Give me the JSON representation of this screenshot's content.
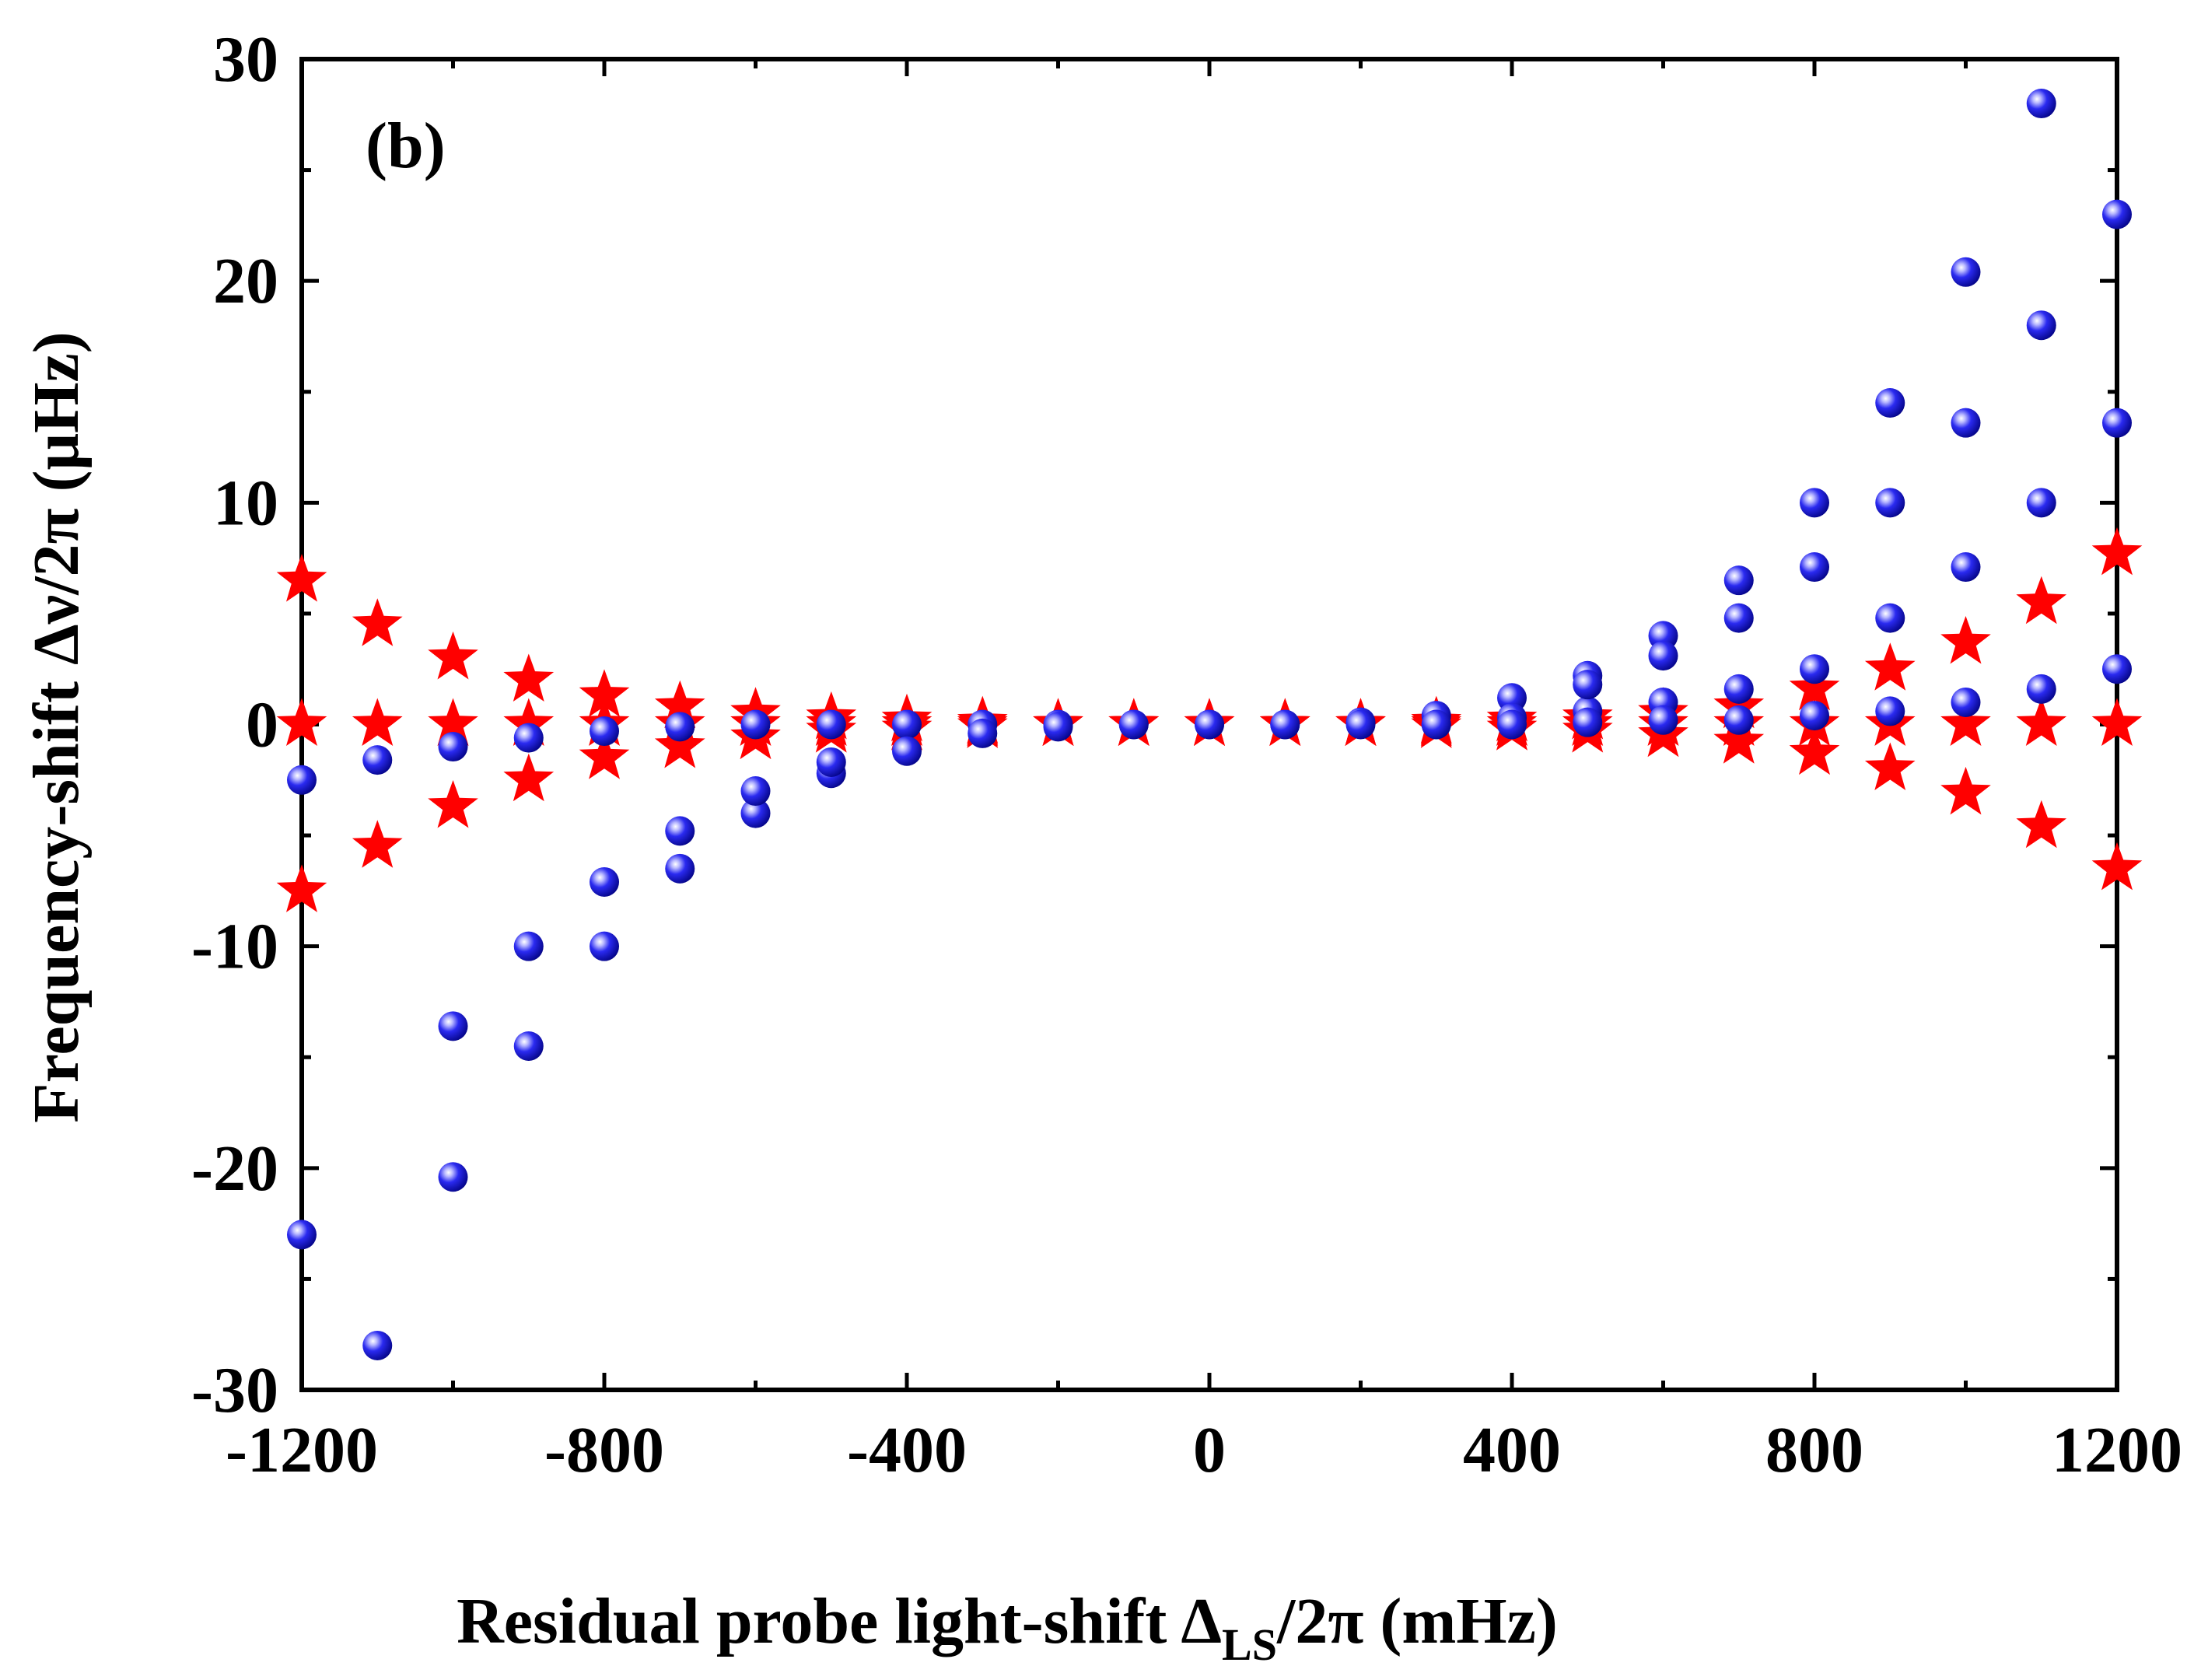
{
  "chart_data": {
    "type": "scatter",
    "panel_label": "(b)",
    "xlabel": "Residual probe light-shift",
    "xlabel_symbol": "Δ",
    "xlabel_subscript": "LS",
    "xlabel_tail": "/2π (mHz)",
    "ylabel": "Frequency-shift Δν/2π (μHz)",
    "xlim": [
      -1200,
      1200
    ],
    "ylim": [
      -30,
      30
    ],
    "x_ticks": [
      "-1200",
      "-800",
      "-400",
      "0",
      "400",
      "800",
      "1200"
    ],
    "y_ticks": [
      "-30",
      "-20",
      "-10",
      "0",
      "10",
      "20",
      "30"
    ],
    "grid": false,
    "colors": {
      "circles": "#1010e0",
      "stars": "#ff0000",
      "axes": "#000000"
    },
    "series": [
      {
        "name": "circles upper",
        "marker": "circle",
        "x": [
          -1200,
          -1100,
          -1000,
          -900,
          -800,
          -700,
          -600,
          -500,
          -400,
          -300,
          -200,
          -100,
          0,
          100,
          200,
          300,
          400,
          500,
          600,
          700,
          800,
          900,
          1000,
          1100,
          1200
        ],
        "y": [
          -2.5,
          -1.6,
          -1.0,
          -0.6,
          -0.3,
          -0.1,
          0.0,
          0.0,
          0.0,
          0.0,
          0.0,
          0.0,
          0.0,
          0.0,
          0.1,
          0.4,
          1.2,
          2.2,
          4.0,
          6.5,
          10.0,
          14.5,
          20.4,
          28.0,
          23.0
        ]
      },
      {
        "name": "circles lower",
        "marker": "circle",
        "x": [
          -1200,
          -1100,
          -1000,
          -900,
          -800,
          -700,
          -600,
          -500,
          -400,
          -300,
          -200,
          -100,
          0,
          100,
          200,
          300,
          400,
          500,
          600,
          700,
          800,
          900,
          1000,
          1100,
          1200
        ],
        "y": [
          -23.0,
          -28.0,
          -20.4,
          -14.5,
          -10.0,
          -6.5,
          -4.0,
          -2.2,
          -1.2,
          -0.4,
          -0.1,
          0.0,
          0.0,
          0.0,
          0.0,
          0.0,
          0.3,
          0.6,
          1.0,
          1.6,
          2.5,
          4.8,
          7.1,
          10.0,
          13.6
        ]
      },
      {
        "name": "circles lower-left inner",
        "marker": "circle",
        "x": [
          -1000,
          -900,
          -800,
          -700,
          -600,
          -500
        ],
        "y": [
          -13.6,
          -10.0,
          -7.1,
          -4.8,
          -3.0,
          -1.7
        ]
      },
      {
        "name": "circles near zero",
        "marker": "circle",
        "x": [
          300,
          400,
          500,
          600,
          700,
          800,
          900,
          1000,
          1100,
          1200
        ],
        "y": [
          0.0,
          0.0,
          0.1,
          0.2,
          0.2,
          0.4,
          0.6,
          1.0,
          1.6,
          2.5
        ]
      },
      {
        "name": "circles right mid",
        "marker": "circle",
        "x": [
          500,
          600,
          700,
          800,
          900,
          1000,
          1100
        ],
        "y": [
          1.8,
          3.1,
          4.8,
          7.1,
          10.0,
          13.6,
          18.0
        ]
      },
      {
        "name": "stars upper",
        "marker": "star",
        "x": [
          -1200,
          -1100,
          -1000,
          -900,
          -800,
          -700,
          -600,
          -500,
          -400,
          -300,
          -200,
          -100,
          0,
          100,
          200,
          300,
          400,
          500,
          600,
          700,
          800,
          900,
          1000,
          1100,
          1200
        ],
        "y": [
          6.5,
          4.5,
          3.0,
          2.0,
          1.3,
          0.8,
          0.5,
          0.3,
          0.2,
          0.1,
          0.0,
          0.0,
          0.0,
          0.0,
          0.0,
          0.1,
          0.2,
          0.3,
          0.5,
          0.8,
          1.6,
          2.5,
          3.7,
          5.5,
          7.7
        ]
      },
      {
        "name": "stars middle",
        "marker": "star",
        "x": [
          -1200,
          -1100,
          -1000,
          -900,
          -800,
          -700,
          -600,
          -500,
          -400,
          -300,
          -200,
          -100,
          0,
          100,
          200,
          300,
          400,
          500,
          600,
          700,
          800,
          900,
          1000,
          1100,
          1200
        ],
        "y": [
          0.0,
          0.0,
          0.0,
          0.0,
          0.0,
          0.0,
          0.0,
          0.0,
          0.0,
          0.0,
          0.0,
          0.0,
          0.0,
          0.0,
          0.0,
          0.0,
          0.0,
          0.0,
          0.0,
          0.0,
          0.0,
          0.0,
          0.0,
          0.0,
          0.0
        ]
      },
      {
        "name": "stars lower",
        "marker": "star",
        "x": [
          -1200,
          -1100,
          -1000,
          -900,
          -800,
          -700,
          -600,
          -500,
          -400,
          -300,
          -200,
          -100,
          0,
          100,
          200,
          300,
          400,
          500,
          600,
          700,
          800,
          900,
          1000,
          1100,
          1200
        ],
        "y": [
          -7.5,
          -5.5,
          -3.7,
          -2.5,
          -1.5,
          -1.0,
          -0.6,
          -0.3,
          -0.2,
          -0.1,
          0.0,
          0.0,
          0.0,
          0.0,
          0.0,
          -0.1,
          -0.2,
          -0.3,
          -0.5,
          -0.8,
          -1.3,
          -2.0,
          -3.1,
          -4.6,
          -6.5
        ]
      }
    ]
  }
}
